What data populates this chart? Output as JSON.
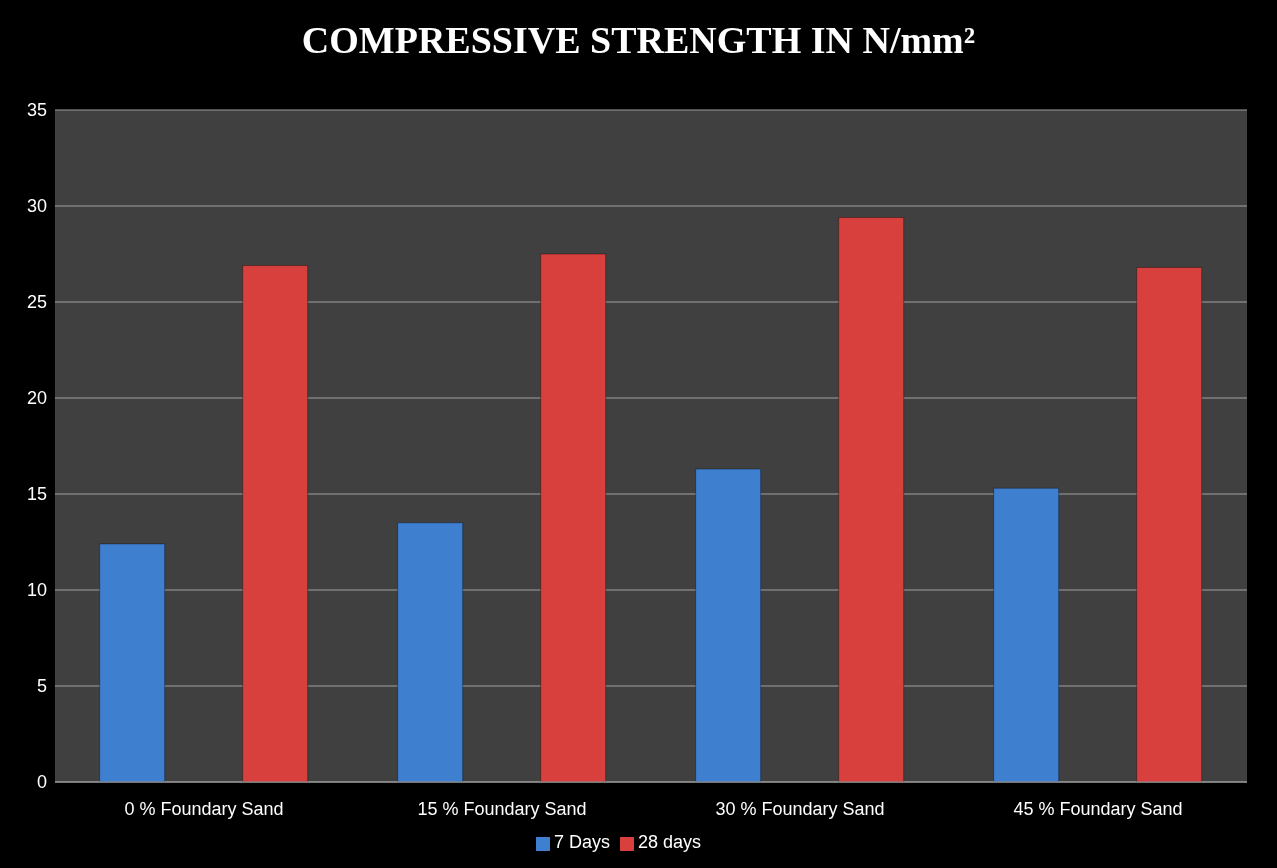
{
  "chart_data": {
    "type": "bar",
    "title": "COMPRESSIVE STRENGTH  IN N/mm²",
    "categories": [
      "0 % Foundary Sand",
      "15 % Foundary Sand",
      "30 % Foundary Sand",
      "45 % Foundary Sand"
    ],
    "series": [
      {
        "name": "7 Days",
        "color": "#3f7fd0",
        "values": [
          12.4,
          13.5,
          16.3,
          15.3
        ]
      },
      {
        "name": "28 days",
        "color": "#d8403e",
        "values": [
          26.9,
          27.5,
          29.4,
          26.8
        ]
      }
    ],
    "ylim": [
      0,
      35
    ],
    "yticks": [
      0,
      5,
      10,
      15,
      20,
      25,
      30,
      35
    ],
    "grid": "y",
    "legend": "bottom"
  }
}
